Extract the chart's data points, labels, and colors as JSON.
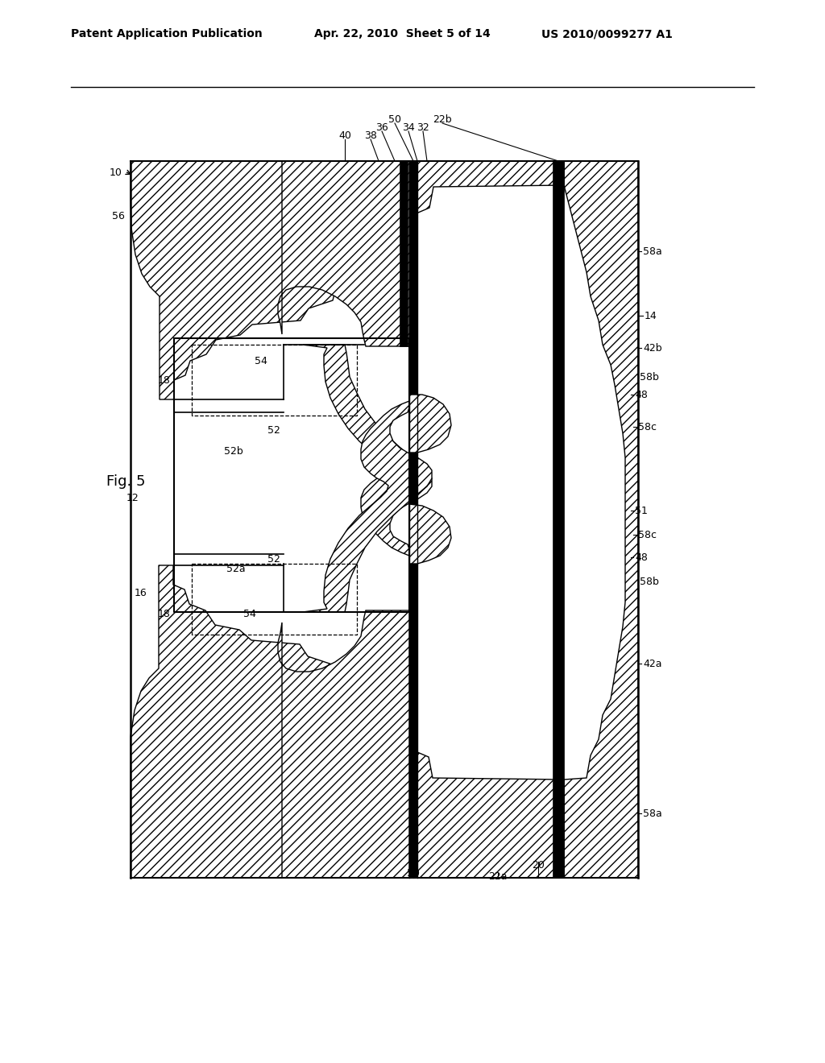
{
  "title_left": "Patent Application Publication",
  "title_center": "Apr. 22, 2010  Sheet 5 of 14",
  "title_right": "US 2010/0099277 A1",
  "fig_label": "Fig. 5",
  "bg_color": "#ffffff",
  "line_color": "#000000"
}
